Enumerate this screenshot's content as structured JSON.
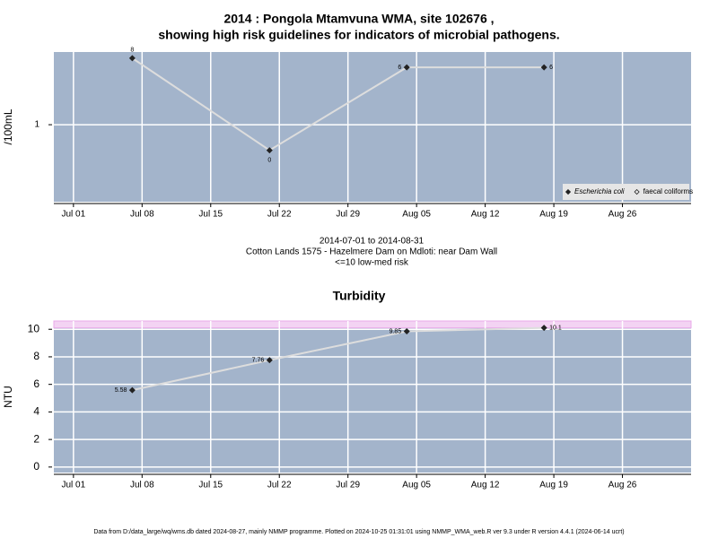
{
  "chart_data": [
    {
      "type": "line",
      "title": [
        "2014 : Pongola Mtamvuna WMA, site 102676 ,",
        "showing high risk guidelines for indicators of microbial pathogens."
      ],
      "ylabel": "/100mL",
      "log": true,
      "x": [
        "Jul 07",
        "Jul 21",
        "Aug 04",
        "Aug 18"
      ],
      "series": [
        {
          "name": "Escherichia coli",
          "color": "#222222",
          "values": [
            8,
            0.45,
            6,
            6
          ],
          "value_labels": [
            "8",
            "0",
            "6",
            "6"
          ]
        },
        {
          "name": "faecal coliforms",
          "color": "#222222",
          "values": [
            null,
            null,
            null,
            null
          ]
        }
      ],
      "line_color": "#dddddd",
      "xlim": [
        "Jun 29",
        "Sep 02"
      ],
      "xticks": [
        "Jul 01",
        "Jul 08",
        "Jul 15",
        "Jul 22",
        "Jul 29",
        "Aug 05",
        "Aug 12",
        "Aug 19",
        "Aug 26"
      ],
      "ylim": [
        0.09,
        9.7
      ],
      "yticks": [
        1
      ],
      "grid": true,
      "legend": "bottom-right",
      "notes": [
        "2014-07-01 to 2014-08-31",
        "Cotton Lands 1575 - Hazelmere Dam on Mdloti: near Dam Wall",
        "<=10 low-med risk"
      ]
    },
    {
      "type": "line",
      "title": [
        "Turbidity"
      ],
      "ylabel": "NTU",
      "log": false,
      "x": [
        "Jul 07",
        "Jul 21",
        "Aug 04",
        "Aug 18"
      ],
      "series": [
        {
          "name": "Turbidity",
          "color": "#222222",
          "values": [
            5.58,
            7.76,
            9.85,
            10.1
          ]
        }
      ],
      "line_color": "#dddddd",
      "band": {
        "from": 10.1,
        "to": 10.6,
        "color": "#f3d3f3"
      },
      "xlim": [
        "Jun 29",
        "Sep 02"
      ],
      "xticks": [
        "Jul 01",
        "Jul 08",
        "Jul 15",
        "Jul 22",
        "Jul 29",
        "Aug 05",
        "Aug 12",
        "Aug 19",
        "Aug 26"
      ],
      "ylim": [
        -0.4,
        10.6
      ],
      "yticks": [
        0,
        2,
        4,
        6,
        8,
        10
      ],
      "grid": true
    }
  ],
  "footer": "Data from D:/data_large/wq/wms.db dated 2024-08-27, mainly NMMP programme. Plotted on 2024-10-25 01:31:01 using NMMP_WMA_web.R ver 9.3 under R version 4.4.1 (2024-06-14 ucrt)"
}
